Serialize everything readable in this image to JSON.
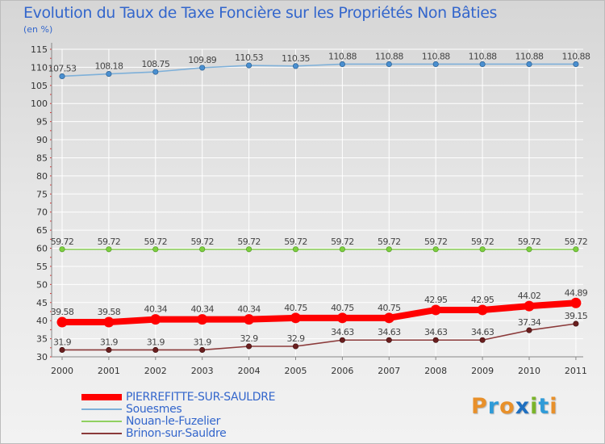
{
  "title": "Evolution du Taux de Taxe Foncière sur les Propriétés Non Bâties",
  "subtitle": "(en %)",
  "chart_data": {
    "type": "line",
    "title": "Evolution du Taux de Taxe Foncière sur les Propriétés Non Bâties",
    "ylabel": "(en %)",
    "xlabel": "",
    "ylim": [
      30,
      115
    ],
    "yticks": [
      "30",
      "35",
      "40",
      "45",
      "50",
      "55",
      "60",
      "65",
      "70",
      "75",
      "80",
      "85",
      "90",
      "95",
      "100",
      "105",
      "110",
      "115"
    ],
    "categories": [
      "2000",
      "2001",
      "2002",
      "2003",
      "2004",
      "2005",
      "2006",
      "2007",
      "2008",
      "2009",
      "2010",
      "2011"
    ],
    "series": [
      {
        "name": "PIERREFITTE-SUR-SAULDRE",
        "color": "#ff0000",
        "values": [
          39.58,
          39.58,
          40.34,
          40.34,
          40.34,
          40.75,
          40.75,
          40.75,
          42.95,
          42.95,
          44.02,
          44.89
        ],
        "labels": [
          "39.58",
          "39.58",
          "40.34",
          "40.34",
          "40.34",
          "40.75",
          "40.75",
          "40.75",
          "42.95",
          "42.95",
          "44.02",
          "44.89"
        ]
      },
      {
        "name": "Souesmes",
        "color": "#7eb0d9",
        "values": [
          107.53,
          108.18,
          108.75,
          109.89,
          110.53,
          110.35,
          110.88,
          110.88,
          110.88,
          110.88,
          110.88,
          110.88
        ],
        "labels": [
          "107.53",
          "108.18",
          "108.75",
          "109.89",
          "110.53",
          "110.35",
          "110.88",
          "110.88",
          "110.88",
          "110.88",
          "110.88",
          "110.88"
        ]
      },
      {
        "name": "Nouan-le-Fuzelier",
        "color": "#90d060",
        "values": [
          59.72,
          59.72,
          59.72,
          59.72,
          59.72,
          59.72,
          59.72,
          59.72,
          59.72,
          59.72,
          59.72,
          59.72
        ],
        "labels": [
          "59.72",
          "59.72",
          "59.72",
          "59.72",
          "59.72",
          "59.72",
          "59.72",
          "59.72",
          "59.72",
          "59.72",
          "59.72",
          "59.72"
        ]
      },
      {
        "name": "Brinon-sur-Sauldre",
        "color": "#8b3a3a",
        "values": [
          31.9,
          31.9,
          31.9,
          31.9,
          32.9,
          32.9,
          34.63,
          34.63,
          34.63,
          34.63,
          37.34,
          39.15
        ],
        "labels": [
          "31.9",
          "31.9",
          "31.9",
          "31.9",
          "32.9",
          "32.9",
          "34.63",
          "34.63",
          "34.63",
          "34.63",
          "37.34",
          "39.15"
        ]
      }
    ]
  },
  "legend": [
    {
      "label": "PIERREFITTE-SUR-SAULDRE",
      "color": "#ff0000"
    },
    {
      "label": "Souesmes",
      "color": "#7eb0d9"
    },
    {
      "label": "Nouan-le-Fuzelier",
      "color": "#90d060"
    },
    {
      "label": "Brinon-sur-Sauldre",
      "color": "#8b3a3a"
    }
  ],
  "logo": {
    "text": "Proxiti"
  }
}
